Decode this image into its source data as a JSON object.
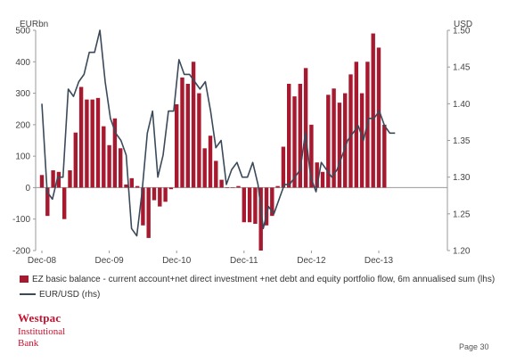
{
  "chart_data": {
    "type": "bar+line",
    "left_axis_unit": "EURbn",
    "right_axis_unit": "USD",
    "left_ylim": [
      -200,
      500
    ],
    "left_ticks": [
      -200,
      -100,
      0,
      100,
      200,
      300,
      400,
      500
    ],
    "right_ylim": [
      1.2,
      1.5
    ],
    "right_ticks": [
      "1.20",
      "1.25",
      "1.30",
      "1.35",
      "1.40",
      "1.45",
      "1.50"
    ],
    "x_tick_labels": [
      "Dec-08",
      "Dec-09",
      "Dec-10",
      "Dec-11",
      "Dec-12",
      "Dec-13"
    ],
    "x_tick_index": [
      0,
      12,
      24,
      36,
      48,
      60
    ],
    "series": [
      {
        "name": "EZ basic balance - current account+net direct investment +net debt and equity portfolio flow, 6m annualised sum (lhs)",
        "kind": "bar",
        "axis": "left",
        "color": "#a6192e",
        "values": [
          40,
          -90,
          55,
          50,
          -100,
          55,
          175,
          320,
          280,
          280,
          285,
          195,
          135,
          220,
          125,
          10,
          30,
          5,
          -120,
          -160,
          -40,
          -60,
          -45,
          -5,
          265,
          350,
          330,
          400,
          300,
          125,
          165,
          85,
          25,
          0,
          0,
          5,
          -110,
          -110,
          -115,
          -200,
          -120,
          -90,
          5,
          130,
          330,
          290,
          330,
          380,
          200,
          80,
          50,
          295,
          315,
          270,
          300,
          360,
          400,
          300,
          400,
          490,
          445,
          200
        ]
      },
      {
        "name": "EUR/USD (rhs)",
        "kind": "line",
        "axis": "right",
        "color": "#3b4a5a",
        "values": [
          1.4,
          1.28,
          1.27,
          1.3,
          1.3,
          1.42,
          1.41,
          1.43,
          1.44,
          1.47,
          1.47,
          1.5,
          1.43,
          1.38,
          1.36,
          1.35,
          1.33,
          1.23,
          1.22,
          1.28,
          1.36,
          1.39,
          1.3,
          1.33,
          1.39,
          1.39,
          1.46,
          1.44,
          1.44,
          1.43,
          1.42,
          1.43,
          1.39,
          1.34,
          1.35,
          1.29,
          1.31,
          1.32,
          1.3,
          1.3,
          1.32,
          1.29,
          1.23,
          1.26,
          1.25,
          1.27,
          1.29,
          1.29,
          1.3,
          1.31,
          1.36,
          1.3,
          1.28,
          1.32,
          1.31,
          1.3,
          1.31,
          1.33,
          1.35,
          1.36,
          1.37,
          1.35,
          1.38,
          1.38,
          1.39,
          1.37,
          1.36,
          1.36
        ]
      }
    ],
    "grid": false,
    "legend_position": "bottom-left"
  },
  "logo": {
    "brand": "Westpac",
    "sub1": "Institutional",
    "sub2": "Bank"
  },
  "page": "Page 30"
}
